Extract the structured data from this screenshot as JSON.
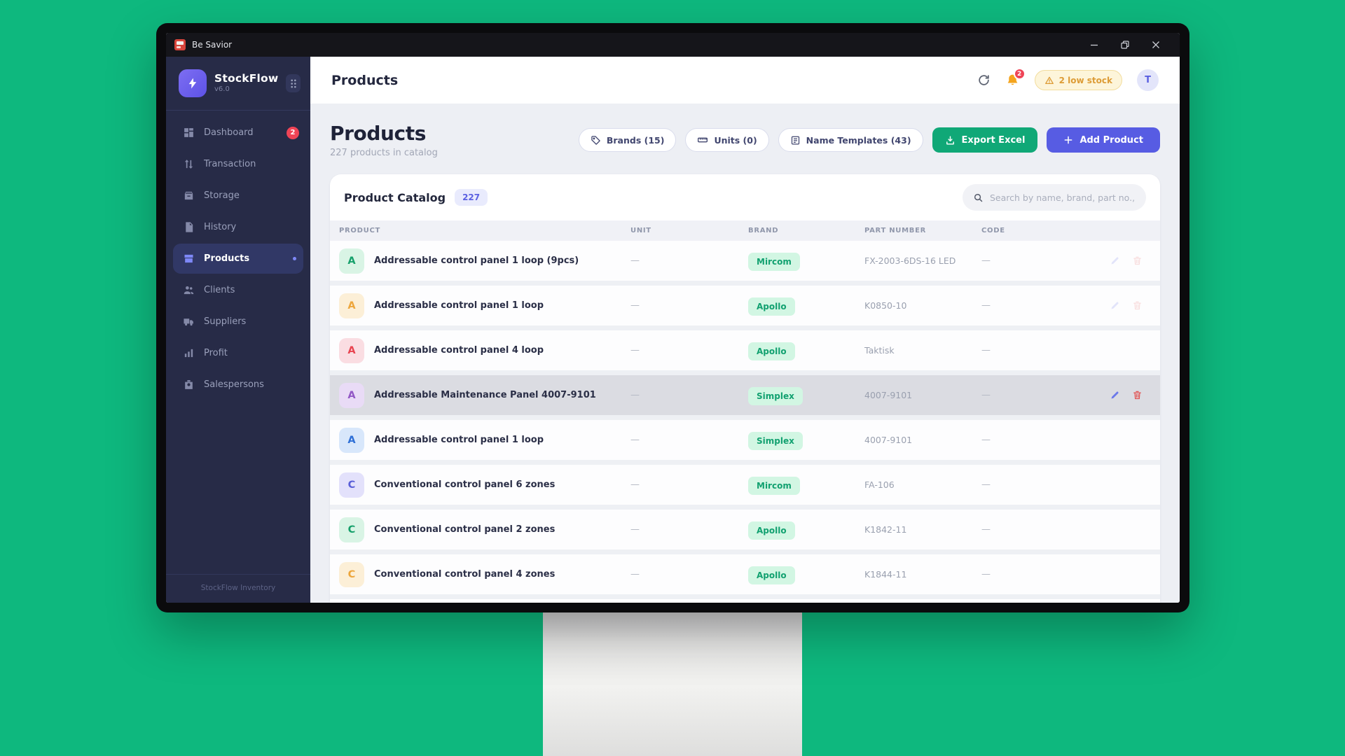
{
  "window": {
    "title": "Be Savior",
    "controls": {
      "minimize": "–",
      "restore": "❐",
      "close": "✕"
    }
  },
  "sidebar": {
    "brand": {
      "name": "StockFlow",
      "version": "v6.0"
    },
    "items": [
      {
        "label": "Dashboard",
        "icon": "dashboard-icon",
        "badge": "2"
      },
      {
        "label": "Transaction",
        "icon": "transaction-icon"
      },
      {
        "label": "Storage",
        "icon": "storage-icon"
      },
      {
        "label": "History",
        "icon": "history-icon"
      },
      {
        "label": "Products",
        "icon": "products-icon",
        "active": true
      },
      {
        "label": "Clients",
        "icon": "clients-icon"
      },
      {
        "label": "Suppliers",
        "icon": "suppliers-icon"
      },
      {
        "label": "Profit",
        "icon": "profit-icon"
      },
      {
        "label": "Salespersons",
        "icon": "salespersons-icon"
      }
    ],
    "footer": "StockFlow Inventory"
  },
  "topbar": {
    "title": "Products",
    "notification_count": "2",
    "low_stock_label": "2 low stock",
    "avatar_initial": "T"
  },
  "page": {
    "title": "Products",
    "subtitle": "227 products in catalog",
    "filters": [
      {
        "label": "Brands (15)",
        "icon": "tag-icon"
      },
      {
        "label": "Units (0)",
        "icon": "ruler-icon"
      },
      {
        "label": "Name Templates (43)",
        "icon": "template-icon"
      }
    ],
    "export_label": "Export Excel",
    "add_label": "Add Product"
  },
  "catalog": {
    "title": "Product Catalog",
    "count_badge": "227",
    "search_placeholder": "Search by name, brand, part no.,...",
    "columns": [
      "PRODUCT",
      "UNIT",
      "BRAND",
      "PART NUMBER",
      "CODE"
    ],
    "rows": [
      {
        "initial": "A",
        "avatar_color": "green",
        "name": "Addressable control panel 1 loop (9pcs)",
        "unit": "—",
        "brand": "Mircom",
        "part_number": "FX-2003-6DS-16 LED",
        "code": "—",
        "actions": "faint"
      },
      {
        "initial": "A",
        "avatar_color": "amber",
        "name": "Addressable control panel 1 loop",
        "unit": "—",
        "brand": "Apollo",
        "part_number": "K0850-10",
        "code": "—",
        "actions": "faint"
      },
      {
        "initial": "A",
        "avatar_color": "red",
        "name": "Addressable control panel 4 loop",
        "unit": "—",
        "brand": "Apollo",
        "part_number": "Taktisk",
        "code": "—",
        "actions": "hidden"
      },
      {
        "initial": "A",
        "avatar_color": "purple",
        "name": "Addressable Maintenance Panel 4007-9101",
        "unit": "—",
        "brand": "Simplex",
        "part_number": "4007-9101",
        "code": "—",
        "actions": "visible",
        "highlight": true
      },
      {
        "initial": "A",
        "avatar_color": "blue",
        "name": "Addressable control panel 1 loop",
        "unit": "—",
        "brand": "Simplex",
        "part_number": "4007-9101",
        "code": "—",
        "actions": "hidden"
      },
      {
        "initial": "C",
        "avatar_color": "indigo",
        "name": "Conventional control panel 6 zones",
        "unit": "—",
        "brand": "Mircom",
        "part_number": "FA-106",
        "code": "—",
        "actions": "hidden"
      },
      {
        "initial": "C",
        "avatar_color": "green",
        "name": "Conventional control panel 2 zones",
        "unit": "—",
        "brand": "Apollo",
        "part_number": "K1842-11",
        "code": "—",
        "actions": "hidden"
      },
      {
        "initial": "C",
        "avatar_color": "amber",
        "name": "Conventional control panel 4 zones",
        "unit": "—",
        "brand": "Apollo",
        "part_number": "K1844-11",
        "code": "—",
        "actions": "hidden"
      }
    ]
  },
  "colors": {
    "desktop_background": "#0eb87e",
    "sidebar": "#272b47",
    "primary_indigo": "#575ce3",
    "success_green": "#10a877",
    "warning_amber": "#dd9c36",
    "danger_red": "#ef4456",
    "brand_badge_bg": "#d2f6e3",
    "brand_badge_text": "#12a170"
  }
}
